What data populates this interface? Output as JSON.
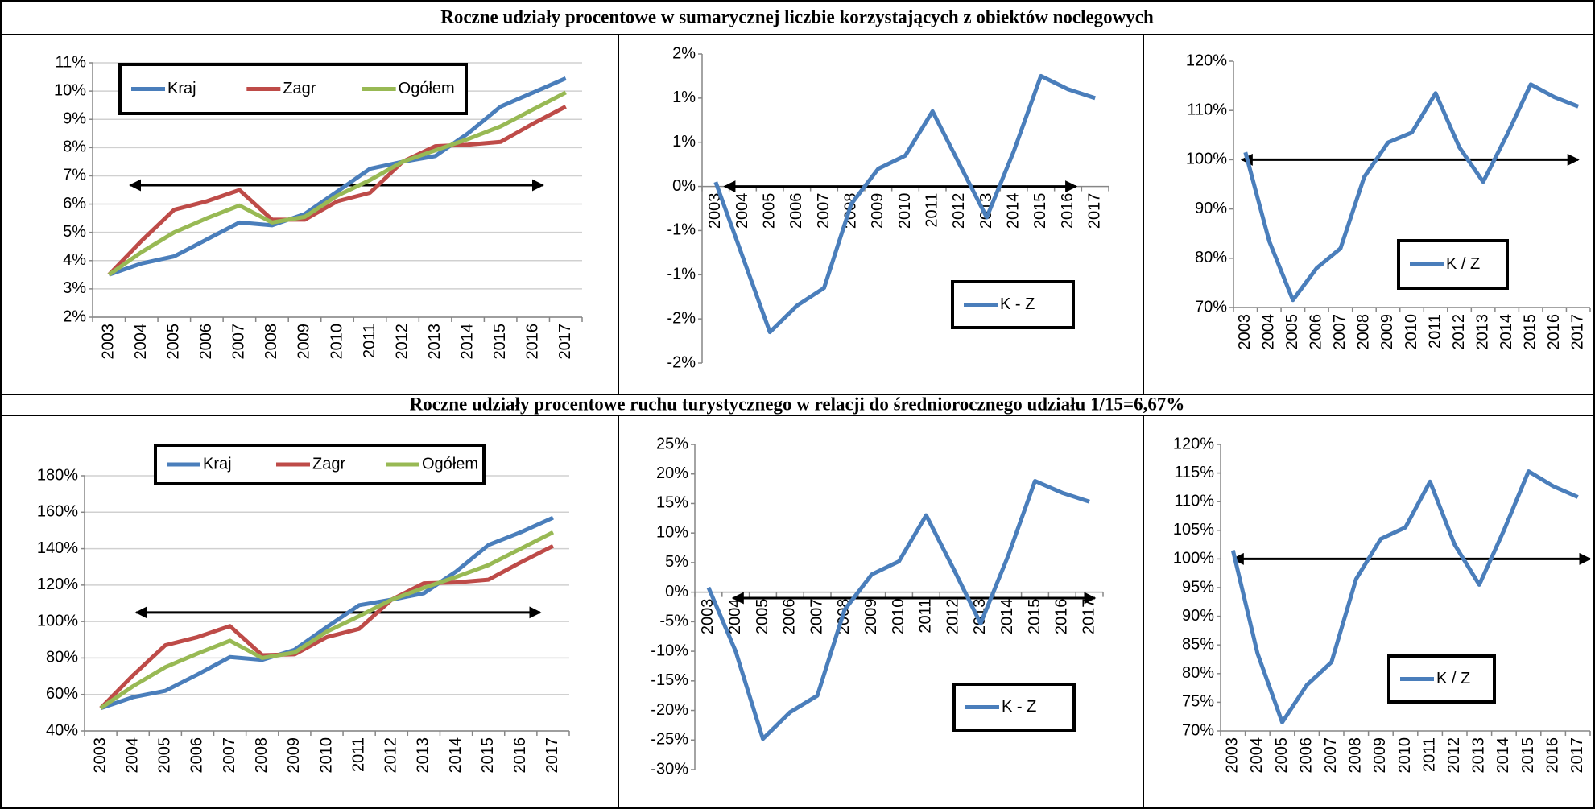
{
  "headers": [
    "Roczne udziały procentowe w sumarycznej liczbie korzystających z obiektów noclegowych",
    "Roczne udziały procentowe ruchu turystycznego w relacji do średniorocznego udziału 1/15=6,67%"
  ],
  "chart_data": [
    {
      "type": "line",
      "categories": [
        "2003",
        "2004",
        "2005",
        "2006",
        "2007",
        "2008",
        "2009",
        "2010",
        "2011",
        "2012",
        "2013",
        "2014",
        "2015",
        "2016",
        "2017"
      ],
      "series": [
        {
          "name": "Kraj",
          "color": "#4a7ebb",
          "values": [
            3.5,
            3.9,
            4.15,
            4.75,
            5.35,
            5.25,
            5.65,
            6.45,
            7.25,
            7.5,
            7.7,
            8.5,
            9.45,
            9.95,
            10.45
          ]
        },
        {
          "name": "Zagr",
          "color": "#be4b48",
          "values": [
            3.5,
            4.7,
            5.8,
            6.1,
            6.5,
            5.45,
            5.45,
            6.1,
            6.4,
            7.5,
            8.05,
            8.1,
            8.2,
            8.85,
            9.45
          ]
        },
        {
          "name": "Ogółem",
          "color": "#98b954",
          "values": [
            3.5,
            4.3,
            5.0,
            5.5,
            5.95,
            5.35,
            5.55,
            6.3,
            6.85,
            7.5,
            7.9,
            8.3,
            8.75,
            9.35,
            9.95
          ]
        }
      ],
      "ylim": [
        2,
        11
      ],
      "yticks": [
        {
          "value": 2,
          "label": "2%"
        },
        {
          "value": 3,
          "label": "3%"
        },
        {
          "value": 4,
          "label": "4%"
        },
        {
          "value": 5,
          "label": "5%"
        },
        {
          "value": 6,
          "label": "6%"
        },
        {
          "value": 7,
          "label": "7%"
        },
        {
          "value": 8,
          "label": "8%"
        },
        {
          "value": 9,
          "label": "9%"
        },
        {
          "value": 10,
          "label": "10%"
        },
        {
          "value": 11,
          "label": "11%"
        }
      ],
      "grid": true,
      "reference_line": 6.67
    },
    {
      "type": "line",
      "categories": [
        "2003",
        "2004",
        "2005",
        "2006",
        "2007",
        "2008",
        "2009",
        "2010",
        "2011",
        "2012",
        "2013",
        "2014",
        "2015",
        "2016",
        "2017"
      ],
      "series": [
        {
          "name": "K - Z",
          "color": "#4a7ebb",
          "values": [
            0.05,
            -0.8,
            -1.65,
            -1.35,
            -1.15,
            -0.2,
            0.2,
            0.35,
            0.85,
            0.25,
            -0.35,
            0.4,
            1.25,
            1.1,
            1.0
          ]
        }
      ],
      "ylim": [
        -2,
        1.5
      ],
      "yticks": [
        {
          "value": -2,
          "label": "-2%"
        },
        {
          "value": -1.5,
          "label": "-2%"
        },
        {
          "value": -1,
          "label": "-1%"
        },
        {
          "value": -0.5,
          "label": "-1%"
        },
        {
          "value": 0,
          "label": "0%"
        },
        {
          "value": 0.5,
          "label": "1%"
        },
        {
          "value": 1,
          "label": "1%"
        },
        {
          "value": 1.5,
          "label": "2%"
        }
      ],
      "grid": false,
      "reference_line": 0
    },
    {
      "type": "line",
      "categories": [
        "2003",
        "2004",
        "2005",
        "2006",
        "2007",
        "2008",
        "2009",
        "2010",
        "2011",
        "2012",
        "2013",
        "2014",
        "2015",
        "2016",
        "2017"
      ],
      "series": [
        {
          "name": "K / Z",
          "color": "#4a7ebb",
          "values": [
            101.5,
            83.5,
            71.5,
            78,
            82,
            96.5,
            103.5,
            105.5,
            113.5,
            102.5,
            95.5,
            105,
            115.3,
            112.7,
            110.8
          ]
        }
      ],
      "ylim": [
        70,
        120
      ],
      "yticks": [
        {
          "value": 70,
          "label": "70%"
        },
        {
          "value": 80,
          "label": "80%"
        },
        {
          "value": 90,
          "label": "90%"
        },
        {
          "value": 100,
          "label": "100%"
        },
        {
          "value": 110,
          "label": "110%"
        },
        {
          "value": 120,
          "label": "120%"
        }
      ],
      "grid": false,
      "reference_line": 100
    },
    {
      "type": "line",
      "categories": [
        "2003",
        "2004",
        "2005",
        "2006",
        "2007",
        "2008",
        "2009",
        "2010",
        "2011",
        "2012",
        "2013",
        "2014",
        "2015",
        "2016",
        "2017"
      ],
      "series": [
        {
          "name": "Kraj",
          "color": "#4a7ebb",
          "values": [
            52.5,
            58.5,
            62,
            71,
            80.5,
            79,
            84.5,
            97,
            109,
            112,
            115.5,
            127.5,
            142,
            149,
            157
          ]
        },
        {
          "name": "Zagr",
          "color": "#be4b48",
          "values": [
            52.5,
            70.5,
            87,
            91.5,
            97.5,
            81.5,
            82,
            91.5,
            96,
            112,
            121,
            121.5,
            123,
            132.5,
            141.5
          ]
        },
        {
          "name": "Ogółem",
          "color": "#98b954",
          "values": [
            52.5,
            64.5,
            75,
            82.5,
            89.5,
            80,
            83,
            94.5,
            103,
            112,
            118.5,
            124.5,
            131,
            140,
            149
          ]
        }
      ],
      "ylim": [
        40,
        180
      ],
      "yticks": [
        {
          "value": 40,
          "label": "40%"
        },
        {
          "value": 60,
          "label": "60%"
        },
        {
          "value": 80,
          "label": "80%"
        },
        {
          "value": 100,
          "label": "100%"
        },
        {
          "value": 120,
          "label": "120%"
        },
        {
          "value": 140,
          "label": "140%"
        },
        {
          "value": 160,
          "label": "160%"
        },
        {
          "value": 180,
          "label": "180%"
        }
      ],
      "grid": true,
      "reference_line": 105
    },
    {
      "type": "line",
      "categories": [
        "2003",
        "2004",
        "2005",
        "2006",
        "2007",
        "2008",
        "2009",
        "2010",
        "2011",
        "2012",
        "2013",
        "2014",
        "2015",
        "2016",
        "2017"
      ],
      "series": [
        {
          "name": "K - Z",
          "color": "#4a7ebb",
          "values": [
            0.8,
            -10,
            -24.8,
            -20.3,
            -17.5,
            -3,
            3,
            5.2,
            13,
            4,
            -5.3,
            6,
            18.8,
            16.8,
            15.3
          ]
        }
      ],
      "ylim": [
        -30,
        25
      ],
      "yticks": [
        {
          "value": -30,
          "label": "-30%"
        },
        {
          "value": -25,
          "label": "-25%"
        },
        {
          "value": -20,
          "label": "-20%"
        },
        {
          "value": -15,
          "label": "-15%"
        },
        {
          "value": -10,
          "label": "-10%"
        },
        {
          "value": -5,
          "label": "-5%"
        },
        {
          "value": 0,
          "label": "0%"
        },
        {
          "value": 5,
          "label": "5%"
        },
        {
          "value": 10,
          "label": "10%"
        },
        {
          "value": 15,
          "label": "15%"
        },
        {
          "value": 20,
          "label": "20%"
        },
        {
          "value": 25,
          "label": "25%"
        }
      ],
      "grid": false,
      "reference_line": -1
    },
    {
      "type": "line",
      "categories": [
        "2003",
        "2004",
        "2005",
        "2006",
        "2007",
        "2008",
        "2009",
        "2010",
        "2011",
        "2012",
        "2013",
        "2014",
        "2015",
        "2016",
        "2017"
      ],
      "series": [
        {
          "name": "K / Z",
          "color": "#4a7ebb",
          "values": [
            101.5,
            83.5,
            71.5,
            78,
            82,
            96.5,
            103.5,
            105.5,
            113.5,
            102.5,
            95.5,
            105,
            115.3,
            112.7,
            110.8
          ]
        }
      ],
      "ylim": [
        70,
        120
      ],
      "yticks": [
        {
          "value": 70,
          "label": "70%"
        },
        {
          "value": 75,
          "label": "75%"
        },
        {
          "value": 80,
          "label": "80%"
        },
        {
          "value": 85,
          "label": "85%"
        },
        {
          "value": 90,
          "label": "90%"
        },
        {
          "value": 95,
          "label": "95%"
        },
        {
          "value": 100,
          "label": "100%"
        },
        {
          "value": 105,
          "label": "105%"
        },
        {
          "value": 110,
          "label": "110%"
        },
        {
          "value": 115,
          "label": "115%"
        },
        {
          "value": 120,
          "label": "120%"
        }
      ],
      "grid": false,
      "reference_line": 100
    }
  ]
}
